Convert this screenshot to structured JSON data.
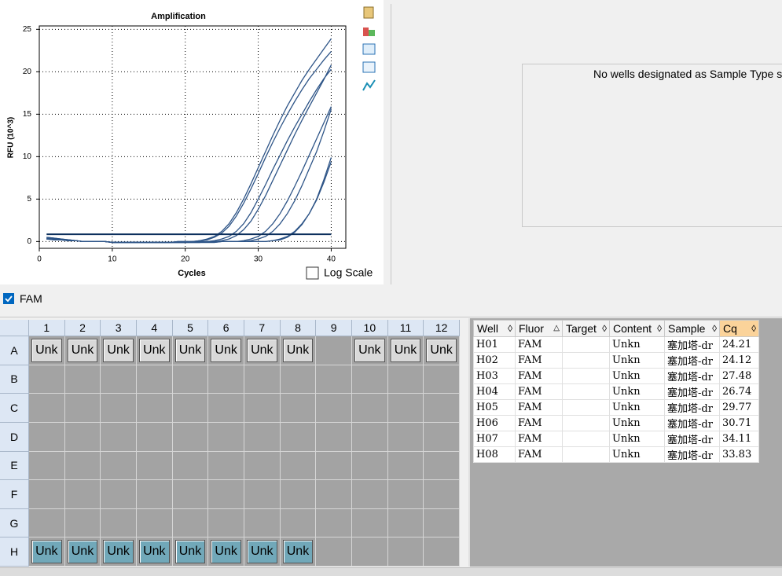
{
  "chart_data": {
    "type": "line",
    "title": "Amplification",
    "x_label": "Cycles",
    "y_label": "RFU (10^3)",
    "x": [
      1,
      2,
      3,
      4,
      5,
      6,
      7,
      8,
      9,
      10,
      11,
      12,
      13,
      14,
      15,
      16,
      17,
      18,
      19,
      20,
      21,
      22,
      23,
      24,
      25,
      26,
      27,
      28,
      29,
      30,
      31,
      32,
      33,
      34,
      35,
      36,
      37,
      38,
      39,
      40
    ],
    "series": [
      {
        "color": "#2d5487",
        "values": [
          0.5,
          0.4,
          0.3,
          0.2,
          0.1,
          0.0,
          0.0,
          0.0,
          0.0,
          -0.1,
          -0.1,
          -0.1,
          -0.1,
          -0.1,
          -0.1,
          -0.1,
          -0.1,
          -0.1,
          0.0,
          0.0,
          0.0,
          0.1,
          0.3,
          0.6,
          1.2,
          2.1,
          3.4,
          5.0,
          6.8,
          8.7,
          10.6,
          12.5,
          14.3,
          16.0,
          17.5,
          19.0,
          20.3,
          21.5,
          22.7,
          23.9
        ]
      },
      {
        "color": "#2d5487",
        "values": [
          0.3,
          0.3,
          0.2,
          0.2,
          0.1,
          0.0,
          0.0,
          0.0,
          0.0,
          -0.1,
          -0.1,
          -0.1,
          -0.1,
          -0.1,
          -0.1,
          -0.1,
          -0.1,
          -0.1,
          0.0,
          0.0,
          0.0,
          0.1,
          0.2,
          0.5,
          1.0,
          1.8,
          3.0,
          4.5,
          6.2,
          8.0,
          9.9,
          11.7,
          13.4,
          15.0,
          16.5,
          17.9,
          19.2,
          20.3,
          21.4,
          22.4
        ]
      },
      {
        "color": "#2d5487",
        "values": [
          0.4,
          0.3,
          0.2,
          0.1,
          0.1,
          0.0,
          0.0,
          0.0,
          0.0,
          -0.1,
          -0.1,
          -0.1,
          -0.1,
          -0.1,
          -0.1,
          -0.1,
          -0.1,
          -0.1,
          -0.1,
          -0.1,
          0.0,
          0.0,
          0.0,
          0.0,
          0.1,
          0.3,
          0.7,
          1.4,
          2.4,
          3.8,
          5.4,
          7.2,
          9.0,
          10.8,
          12.6,
          14.3,
          15.9,
          17.5,
          19.1,
          20.8
        ]
      },
      {
        "color": "#2d5487",
        "values": [
          0.3,
          0.2,
          0.2,
          0.1,
          0.1,
          0.0,
          0.0,
          0.0,
          0.0,
          -0.1,
          -0.1,
          -0.1,
          -0.1,
          -0.1,
          -0.1,
          -0.1,
          -0.1,
          -0.1,
          -0.1,
          -0.1,
          0.0,
          0.0,
          0.0,
          0.1,
          0.3,
          0.6,
          1.2,
          2.1,
          3.4,
          5.0,
          6.7,
          8.5,
          10.2,
          11.9,
          13.5,
          15.0,
          16.5,
          17.9,
          19.2,
          20.3
        ]
      },
      {
        "color": "#2d5487",
        "values": [
          0.5,
          0.4,
          0.3,
          0.2,
          0.1,
          0.0,
          0.0,
          0.0,
          0.0,
          -0.1,
          -0.1,
          -0.1,
          -0.1,
          -0.1,
          -0.1,
          -0.1,
          -0.1,
          -0.1,
          -0.1,
          -0.1,
          -0.1,
          -0.1,
          0.0,
          0.0,
          0.0,
          0.0,
          0.0,
          0.1,
          0.3,
          0.6,
          1.2,
          2.1,
          3.3,
          4.8,
          6.5,
          8.3,
          10.2,
          12.1,
          14.0,
          15.9
        ]
      },
      {
        "color": "#2d5487",
        "values": [
          0.3,
          0.3,
          0.2,
          0.1,
          0.1,
          0.0,
          0.0,
          0.0,
          0.0,
          -0.1,
          -0.1,
          -0.1,
          -0.1,
          -0.1,
          -0.1,
          -0.1,
          -0.1,
          -0.1,
          -0.1,
          -0.1,
          -0.1,
          -0.1,
          0.0,
          0.0,
          0.0,
          0.0,
          0.0,
          0.0,
          0.1,
          0.3,
          0.6,
          1.2,
          2.1,
          3.3,
          4.8,
          6.6,
          8.6,
          10.6,
          13.0,
          15.6
        ]
      },
      {
        "color": "#2d5487",
        "values": [
          0.4,
          0.3,
          0.2,
          0.1,
          0.1,
          0.0,
          0.0,
          0.0,
          0.0,
          -0.1,
          -0.1,
          -0.1,
          -0.1,
          -0.1,
          -0.1,
          -0.1,
          -0.1,
          -0.1,
          -0.1,
          -0.1,
          -0.1,
          -0.1,
          -0.1,
          -0.1,
          0.0,
          0.0,
          0.0,
          0.0,
          0.0,
          0.0,
          0.0,
          0.1,
          0.2,
          0.5,
          1.1,
          2.0,
          3.3,
          5.0,
          7.3,
          9.9
        ]
      },
      {
        "color": "#2d5487",
        "values": [
          0.3,
          0.2,
          0.2,
          0.1,
          0.1,
          0.0,
          0.0,
          0.0,
          0.0,
          -0.1,
          -0.1,
          -0.1,
          -0.1,
          -0.1,
          -0.1,
          -0.1,
          -0.1,
          -0.1,
          -0.1,
          -0.1,
          -0.1,
          -0.1,
          -0.1,
          -0.1,
          0.0,
          0.0,
          0.0,
          0.0,
          0.0,
          0.0,
          0.0,
          0.1,
          0.3,
          0.6,
          1.2,
          2.1,
          3.3,
          4.9,
          7.0,
          9.4
        ]
      }
    ],
    "threshold": 0.85,
    "threshold_color": "#0c2f5c",
    "xlim": [
      0,
      42
    ],
    "ylim": [
      -0.8,
      25.4
    ],
    "xticks": [
      0,
      10,
      20,
      30,
      40
    ],
    "yticks": [
      0,
      5,
      10,
      15,
      20,
      25
    ],
    "grid": true,
    "log_scale": false,
    "log_scale_label": "Log Scale"
  },
  "side_panel": {
    "message": "No wells designated as Sample Type s"
  },
  "fluor_filter": {
    "label": "FAM",
    "checked": true
  },
  "plate": {
    "columns": [
      1,
      2,
      3,
      4,
      5,
      6,
      7,
      8,
      9,
      10,
      11,
      12
    ],
    "rows": [
      {
        "label": "A",
        "selected": false,
        "wells": [
          "Unk",
          "Unk",
          "Unk",
          "Unk",
          "Unk",
          "Unk",
          "Unk",
          "Unk",
          null,
          "Unk",
          "Unk",
          "Unk"
        ]
      },
      {
        "label": "B",
        "selected": false,
        "wells": [
          null,
          null,
          null,
          null,
          null,
          null,
          null,
          null,
          null,
          null,
          null,
          null
        ]
      },
      {
        "label": "C",
        "selected": false,
        "wells": [
          null,
          null,
          null,
          null,
          null,
          null,
          null,
          null,
          null,
          null,
          null,
          null
        ]
      },
      {
        "label": "D",
        "selected": false,
        "wells": [
          null,
          null,
          null,
          null,
          null,
          null,
          null,
          null,
          null,
          null,
          null,
          null
        ]
      },
      {
        "label": "E",
        "selected": false,
        "wells": [
          null,
          null,
          null,
          null,
          null,
          null,
          null,
          null,
          null,
          null,
          null,
          null
        ]
      },
      {
        "label": "F",
        "selected": false,
        "wells": [
          null,
          null,
          null,
          null,
          null,
          null,
          null,
          null,
          null,
          null,
          null,
          null
        ]
      },
      {
        "label": "G",
        "selected": false,
        "wells": [
          null,
          null,
          null,
          null,
          null,
          null,
          null,
          null,
          null,
          null,
          null,
          null
        ]
      },
      {
        "label": "H",
        "selected": true,
        "wells": [
          "Unk",
          "Unk",
          "Unk",
          "Unk",
          "Unk",
          "Unk",
          "Unk",
          "Unk",
          null,
          null,
          null,
          null
        ]
      }
    ]
  },
  "results_table": {
    "headers": [
      "Well",
      "Fluor",
      "Target",
      "Content",
      "Sample",
      "Cq"
    ],
    "sort_column": 1,
    "highlighted_column": 5,
    "rows": [
      [
        "H01",
        "FAM",
        null,
        "Unkn",
        "塞加塔-dr",
        24.21
      ],
      [
        "H02",
        "FAM",
        null,
        "Unkn",
        "塞加塔-dr",
        24.12
      ],
      [
        "H03",
        "FAM",
        null,
        "Unkn",
        "塞加塔-dr",
        27.48
      ],
      [
        "H04",
        "FAM",
        null,
        "Unkn",
        "塞加塔-dr",
        26.74
      ],
      [
        "H05",
        "FAM",
        null,
        "Unkn",
        "塞加塔-dr",
        29.77
      ],
      [
        "H06",
        "FAM",
        null,
        "Unkn",
        "塞加塔-dr",
        30.71
      ],
      [
        "H07",
        "FAM",
        null,
        "Unkn",
        "塞加塔-dr",
        34.11
      ],
      [
        "H08",
        "FAM",
        null,
        "Unkn",
        "塞加塔-dr",
        33.83
      ]
    ]
  }
}
